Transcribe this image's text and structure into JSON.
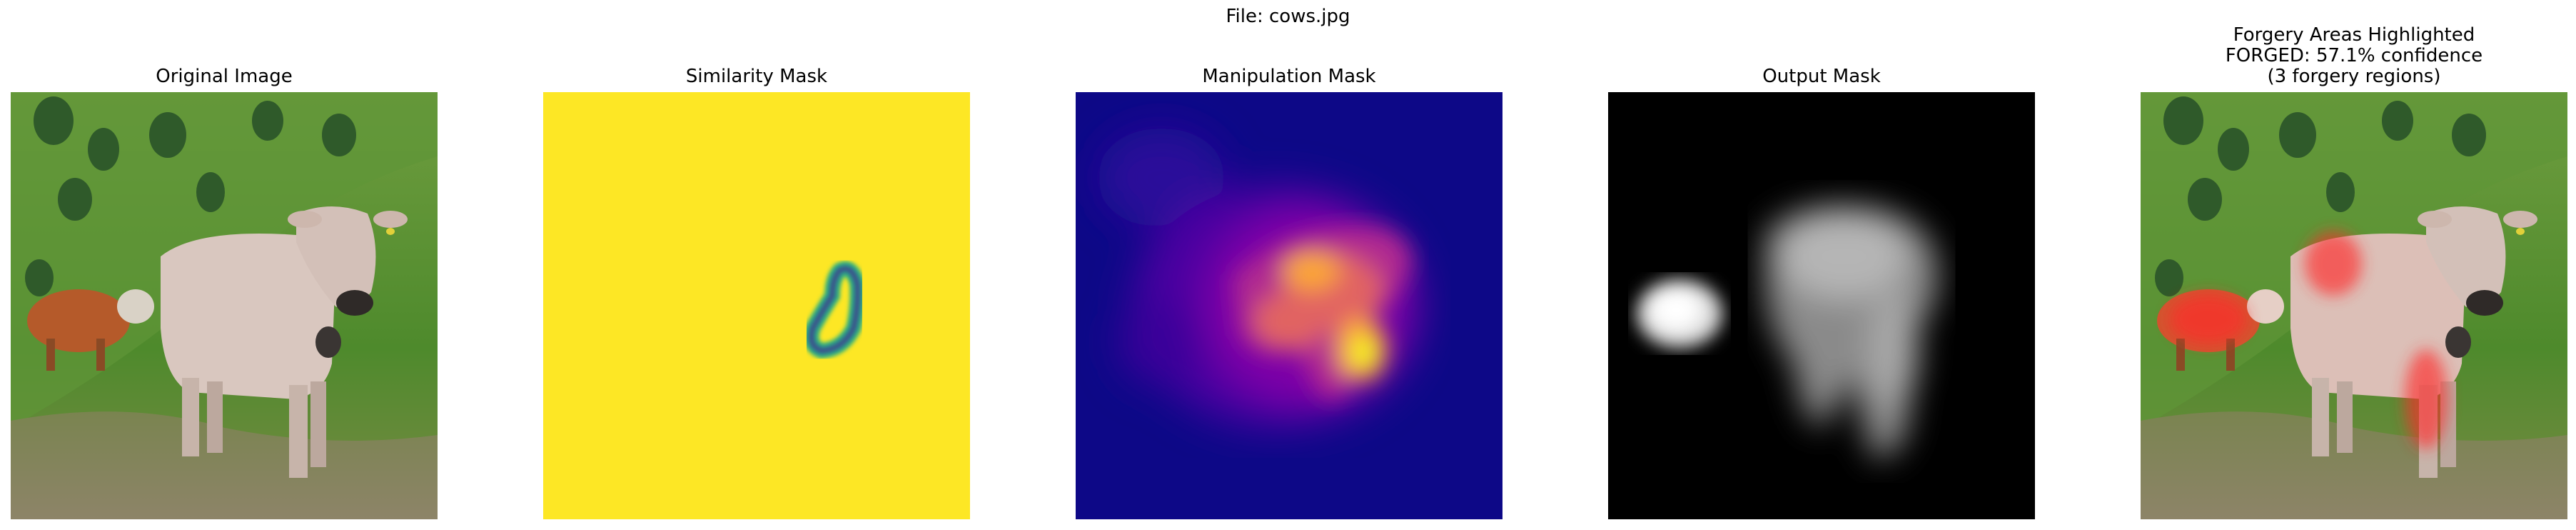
{
  "figure": {
    "suptitle": "File: cows.jpg"
  },
  "panels": [
    {
      "title": "Original Image"
    },
    {
      "title": "Similarity Mask"
    },
    {
      "title": "Manipulation Mask"
    },
    {
      "title": "Output Mask"
    },
    {
      "title_lines": [
        "Forgery Areas Highlighted",
        "FORGED: 57.1% confidence",
        "(3 forgery regions)"
      ]
    }
  ],
  "colors": {
    "similarity_background": "#fde725",
    "similarity_ring": "#3b528b",
    "manipulation_background": "#0d0887",
    "manipulation_hot": "#f0f921",
    "output_background": "#000000",
    "highlight_overlay": "#ff2a2a"
  }
}
